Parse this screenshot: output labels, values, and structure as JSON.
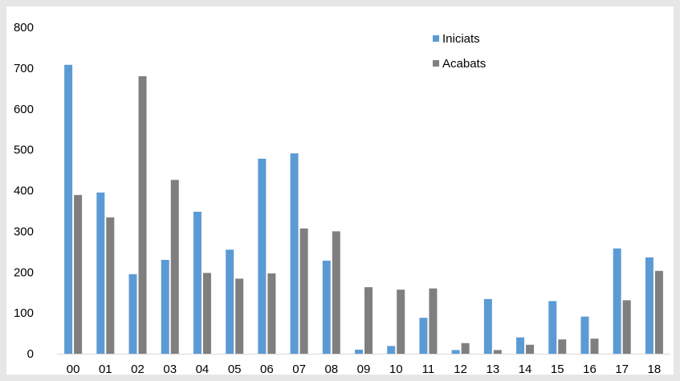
{
  "chart_data": {
    "type": "bar",
    "categories": [
      "00",
      "01",
      "02",
      "03",
      "04",
      "05",
      "06",
      "07",
      "08",
      "09",
      "10",
      "11",
      "12",
      "13",
      "14",
      "15",
      "16",
      "17",
      "18"
    ],
    "series": [
      {
        "name": "Iniciats",
        "color": "#5b9bd5",
        "values": [
          708,
          395,
          195,
          230,
          348,
          255,
          478,
          491,
          228,
          10,
          19,
          88,
          9,
          134,
          40,
          129,
          91,
          258,
          236
        ]
      },
      {
        "name": "Acabats",
        "color": "#7f7f7f",
        "values": [
          389,
          334,
          680,
          426,
          198,
          184,
          197,
          307,
          300,
          163,
          157,
          160,
          26,
          9,
          22,
          35,
          37,
          131,
          203
        ]
      }
    ],
    "ylim": [
      0,
      800
    ],
    "yticks": [
      0,
      100,
      200,
      300,
      400,
      500,
      600,
      700,
      800
    ],
    "title": "",
    "xlabel": "",
    "ylabel": "",
    "grid": false,
    "legend_position": "top-right"
  }
}
